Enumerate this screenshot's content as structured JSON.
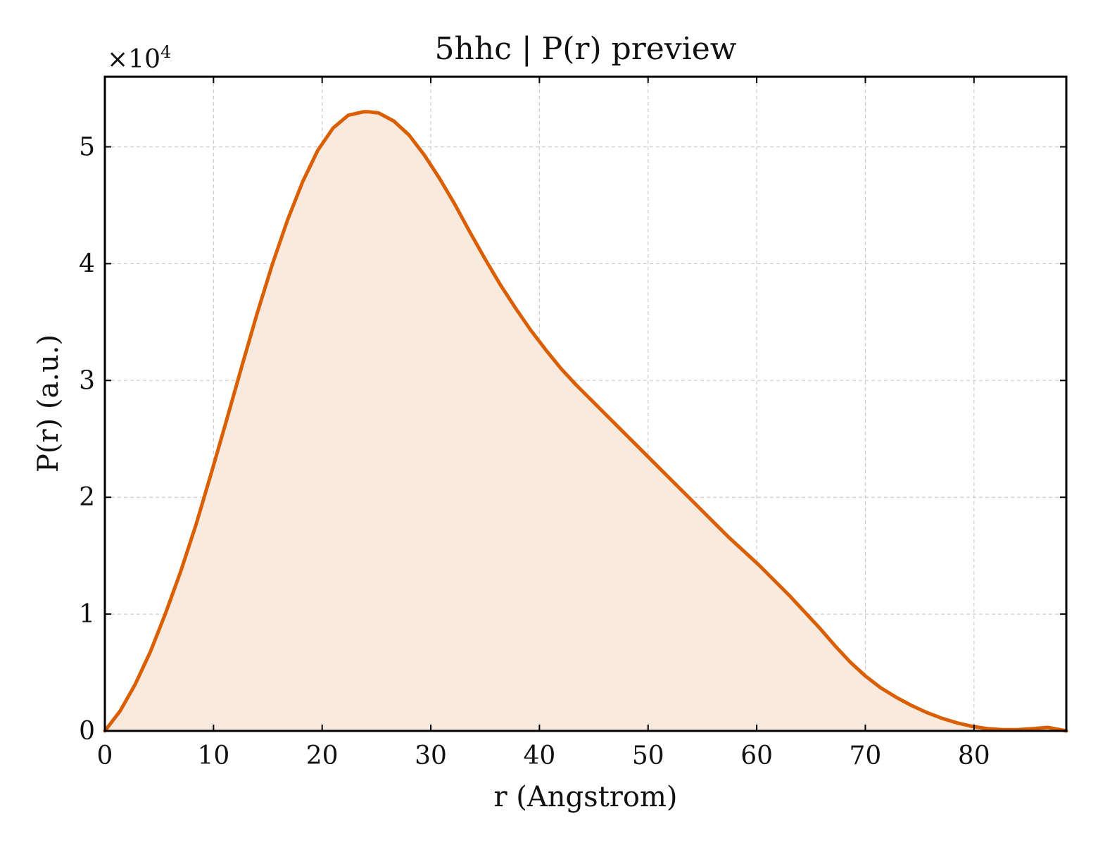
{
  "chart_data": {
    "type": "area",
    "title": "5hhc | P(r) preview",
    "xlabel": "r (Angstrom)",
    "ylabel": "P(r) (a.u.)",
    "y_multiplier_base": "×10",
    "y_multiplier_exp": "4",
    "xlim": [
      0,
      88.5
    ],
    "ylim": [
      0,
      5.6
    ],
    "xticks": [
      0,
      10,
      20,
      30,
      40,
      50,
      60,
      70,
      80
    ],
    "yticks": [
      0,
      1,
      2,
      3,
      4,
      5
    ],
    "grid": true,
    "colors": {
      "line": "#d95f02",
      "fill": "#f9eadf"
    },
    "series": [
      {
        "x": [
          0,
          1.4,
          2.8,
          4.2,
          5.6,
          7.0,
          8.4,
          9.8,
          11.2,
          12.6,
          14.0,
          15.4,
          16.8,
          18.2,
          19.6,
          21.0,
          22.4,
          23.8,
          24.3,
          25.2,
          26.6,
          28.0,
          29.4,
          30.8,
          32.2,
          33.6,
          35.0,
          36.4,
          37.8,
          39.2,
          40.6,
          42.0,
          43.4,
          44.8,
          46.2,
          47.6,
          49.0,
          50.4,
          51.8,
          53.2,
          54.6,
          56.0,
          57.4,
          58.8,
          60.2,
          61.6,
          63.0,
          64.4,
          65.8,
          67.2,
          68.6,
          70.0,
          71.4,
          72.8,
          74.2,
          75.6,
          77.0,
          78.4,
          79.8,
          81.2,
          82.6,
          84.0,
          85.4,
          86.8,
          88.5
        ],
        "values": [
          0.0,
          0.17,
          0.4,
          0.68,
          1.01,
          1.37,
          1.77,
          2.21,
          2.66,
          3.12,
          3.57,
          3.99,
          4.37,
          4.7,
          4.97,
          5.16,
          5.27,
          5.3,
          5.3,
          5.29,
          5.22,
          5.1,
          4.93,
          4.73,
          4.51,
          4.27,
          4.04,
          3.82,
          3.62,
          3.43,
          3.26,
          3.1,
          2.96,
          2.83,
          2.7,
          2.57,
          2.44,
          2.31,
          2.18,
          2.05,
          1.92,
          1.79,
          1.66,
          1.54,
          1.42,
          1.29,
          1.16,
          1.02,
          0.88,
          0.73,
          0.59,
          0.47,
          0.37,
          0.29,
          0.22,
          0.16,
          0.11,
          0.07,
          0.04,
          0.02,
          0.01,
          0.01,
          0.02,
          0.03,
          0.0
        ]
      }
    ]
  }
}
